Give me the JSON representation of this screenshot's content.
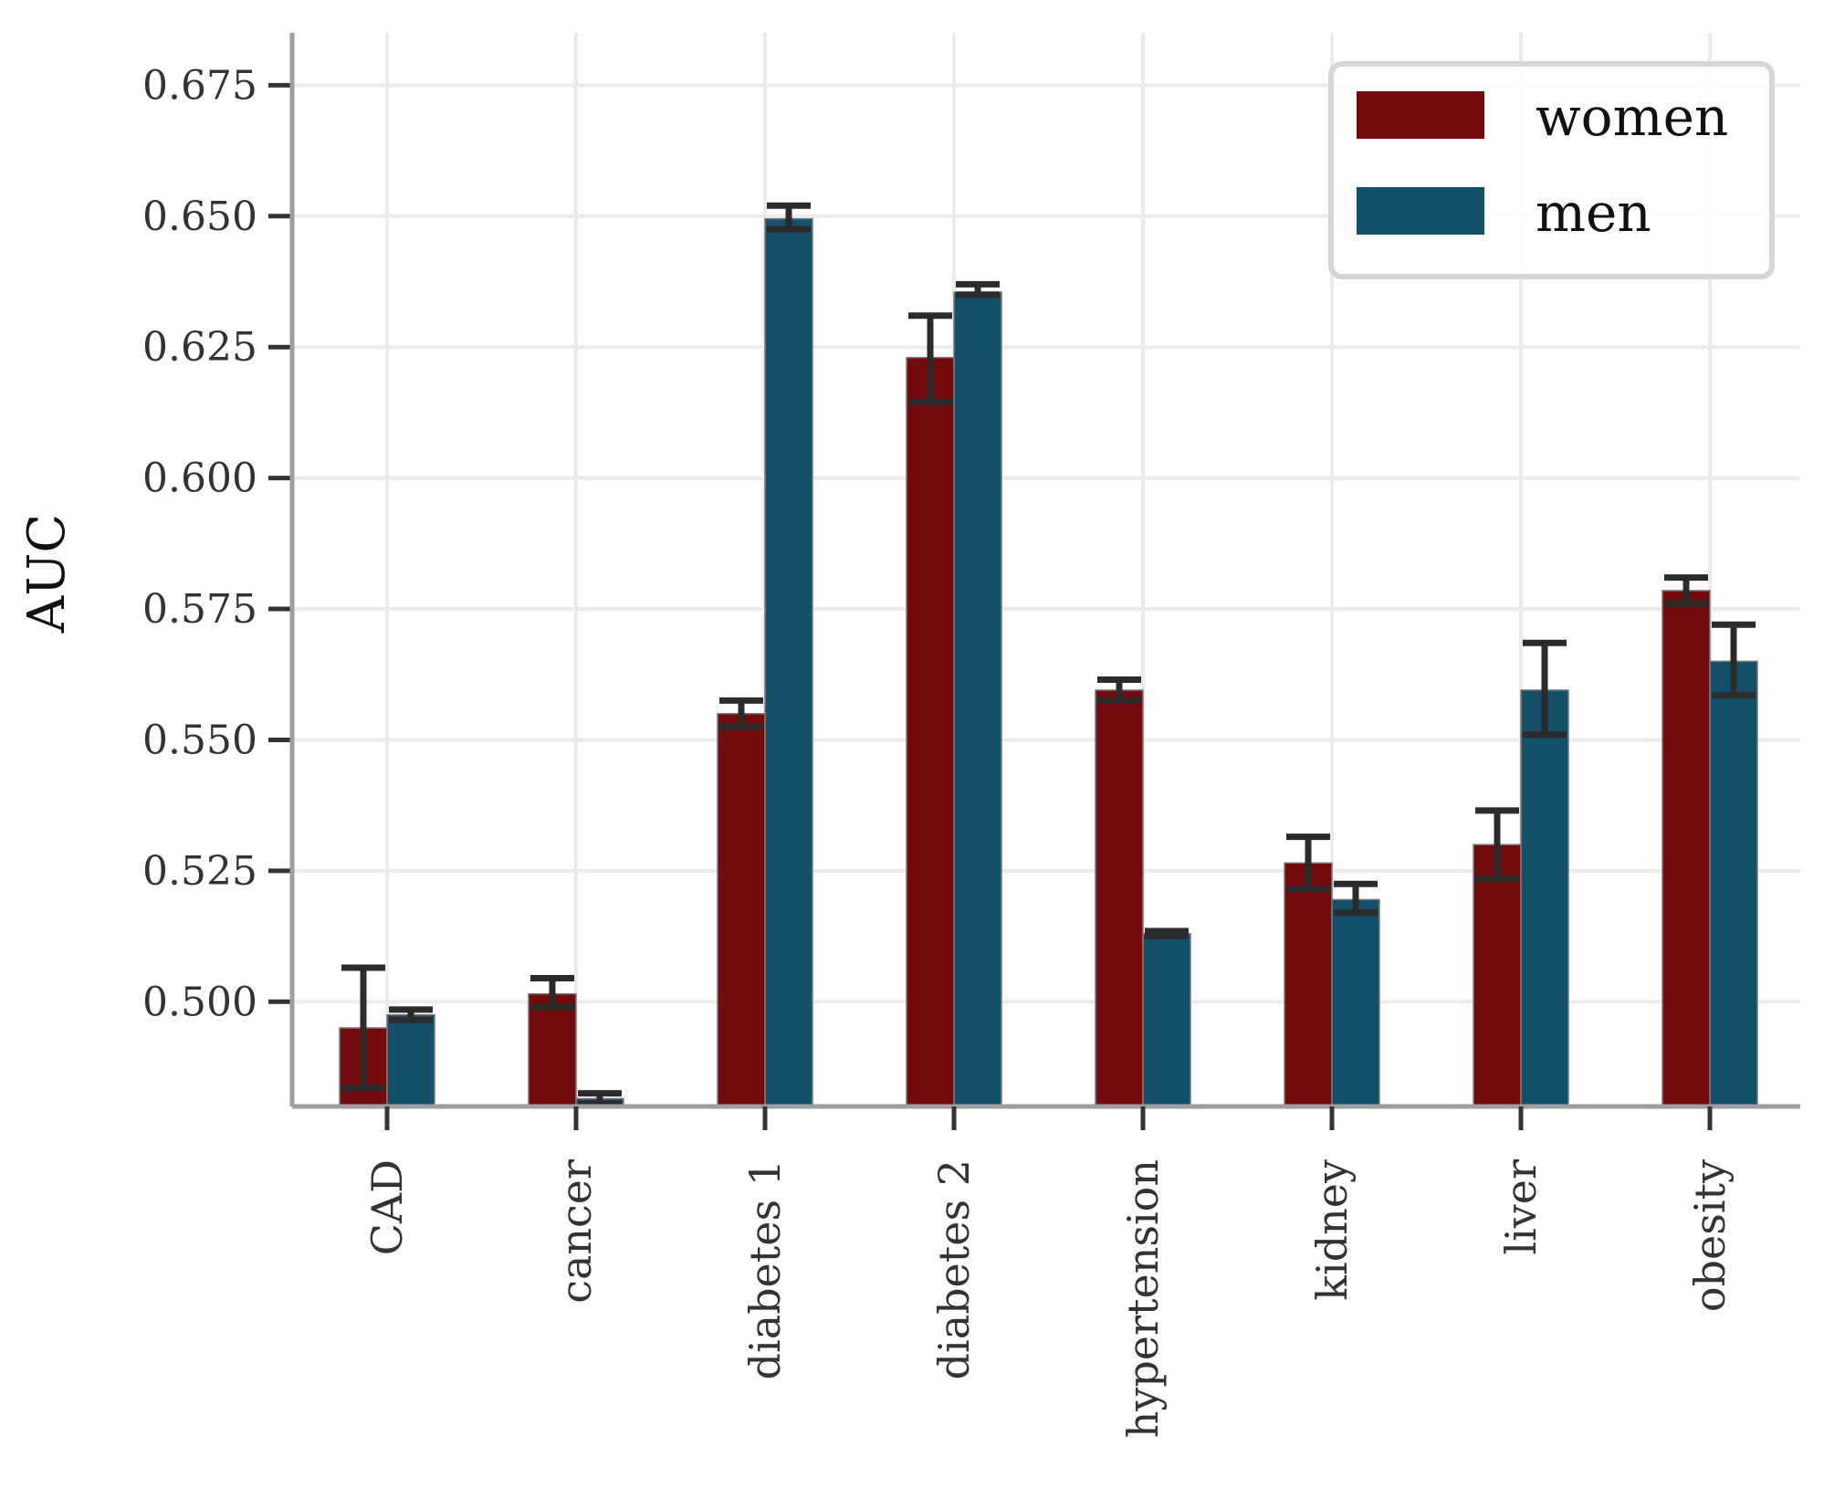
{
  "chart_data": {
    "type": "bar",
    "ylabel": "AUC",
    "ylim": [
      0.48,
      0.685
    ],
    "yticks": [
      0.5,
      0.525,
      0.55,
      0.575,
      0.6,
      0.625,
      0.65,
      0.675
    ],
    "ytick_labels": [
      "0.500",
      "0.525",
      "0.550",
      "0.575",
      "0.600",
      "0.625",
      "0.650",
      "0.675"
    ],
    "categories": [
      "CAD",
      "cancer",
      "diabetes 1",
      "diabetes 2",
      "hypertension",
      "kidney",
      "liver",
      "obesity"
    ],
    "series": [
      {
        "name": "women",
        "color": "#720A0E",
        "values": [
          0.495,
          0.5015,
          0.555,
          0.623,
          0.5595,
          0.5265,
          0.53,
          0.5785
        ],
        "error_low": [
          0.4835,
          0.499,
          0.5525,
          0.6145,
          0.5575,
          0.5215,
          0.5235,
          0.576
        ],
        "error_high": [
          0.5065,
          0.5045,
          0.5575,
          0.631,
          0.5615,
          0.5315,
          0.5365,
          0.581
        ]
      },
      {
        "name": "men",
        "color": "#14506A",
        "values": [
          0.4975,
          0.4815,
          0.6495,
          0.6355,
          0.513,
          0.5195,
          0.5595,
          0.565
        ],
        "error_low": [
          0.4965,
          0.4805,
          0.6475,
          0.635,
          0.5125,
          0.517,
          0.551,
          0.5585
        ],
        "error_high": [
          0.4985,
          0.4825,
          0.652,
          0.637,
          0.5135,
          0.5225,
          0.5685,
          0.572
        ]
      }
    ],
    "grid": true,
    "legend_position": "top-right"
  }
}
